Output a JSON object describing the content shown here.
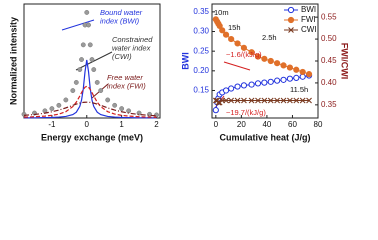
{
  "chart_data": [
    {
      "type": "line",
      "xlabel": "Energy exchange (meV)",
      "ylabel": "Normalized intensity",
      "x": [
        -1.8,
        -1.5,
        -1.2,
        -1,
        -0.8,
        -0.6,
        -0.4,
        -0.3,
        -0.2,
        -0.15,
        -0.1,
        -0.05,
        0,
        0.05,
        0.1,
        0.15,
        0.2,
        0.3,
        0.4,
        0.6,
        0.8,
        1,
        1.2,
        1.5,
        1.8,
        2
      ],
      "series": [
        {
          "color": "#9a9a9a",
          "style": "points",
          "values": [
            0.035,
            0.047,
            0.068,
            0.089,
            0.12,
            0.171,
            0.26,
            0.337,
            0.459,
            0.554,
            0.693,
            0.881,
            1.0,
            0.881,
            0.693,
            0.554,
            0.459,
            0.337,
            0.26,
            0.171,
            0.12,
            0.089,
            0.068,
            0.047,
            0.035,
            0.029
          ]
        },
        {
          "color": "#2233dd",
          "style": "solid",
          "values": [
            0.002,
            0.002,
            0.004,
            0.005,
            0.009,
            0.015,
            0.032,
            0.055,
            0.11,
            0.169,
            0.275,
            0.44,
            0.55,
            0.44,
            0.275,
            0.169,
            0.11,
            0.055,
            0.032,
            0.015,
            0.009,
            0.005,
            0.004,
            0.002,
            0.002,
            0.001
          ]
        },
        {
          "color": "#d42020",
          "style": "dashed",
          "values": [
            0.008,
            0.012,
            0.018,
            0.025,
            0.037,
            0.06,
            0.108,
            0.15,
            0.208,
            0.24,
            0.27,
            0.292,
            0.3,
            0.292,
            0.27,
            0.24,
            0.208,
            0.15,
            0.108,
            0.06,
            0.037,
            0.025,
            0.018,
            0.012,
            0.008,
            0.007
          ]
        },
        {
          "color": "#7a1a1a",
          "style": "dashdot",
          "values": [
            0.025,
            0.033,
            0.046,
            0.059,
            0.075,
            0.096,
            0.12,
            0.132,
            0.141,
            0.145,
            0.148,
            0.149,
            0.15,
            0.149,
            0.148,
            0.145,
            0.141,
            0.132,
            0.12,
            0.096,
            0.075,
            0.059,
            0.046,
            0.033,
            0.025,
            0.021
          ]
        }
      ],
      "xlim": [
        -1.8,
        2.1
      ],
      "xticks": [
        -1,
        0,
        1,
        2
      ],
      "ylim": [
        0,
        1.08
      ],
      "annotations": [
        {
          "lines": [
            "Bound water",
            "index (BWI)"
          ],
          "color": "#2233dd"
        },
        {
          "lines": [
            "Constrained",
            "water index",
            "(CWI)"
          ],
          "color": "#333333"
        },
        {
          "lines": [
            "Free water",
            "index (FWI)"
          ],
          "color": "#7a1a1a"
        }
      ]
    },
    {
      "type": "line",
      "xlabel": "Cumulative heat (J/g)",
      "ylabel": "BWI",
      "y2label": "FWI/CWI",
      "x": [
        0,
        1,
        2,
        3,
        5,
        8,
        12,
        17,
        22,
        28,
        33,
        38,
        43,
        48,
        53,
        58,
        63,
        68,
        73
      ],
      "series": [
        {
          "name": "BWI",
          "color": "#2233dd",
          "marker": "open-circle",
          "values": [
            0.1,
            0.12,
            0.13,
            0.14,
            0.145,
            0.15,
            0.155,
            0.16,
            0.163,
            0.165,
            0.168,
            0.17,
            0.172,
            0.175,
            0.177,
            0.18,
            0.182,
            0.185,
            0.188
          ]
        },
        {
          "name": "FWI",
          "color": "#e0702a",
          "marker": "filled-circle",
          "axis": "y2",
          "values": [
            0.545,
            0.54,
            0.535,
            0.53,
            0.52,
            0.51,
            0.5,
            0.49,
            0.48,
            0.47,
            0.46,
            0.455,
            0.45,
            0.445,
            0.44,
            0.435,
            0.43,
            0.425,
            0.42
          ]
        },
        {
          "name": "CWI",
          "color": "#7a3a20",
          "marker": "x",
          "axis": "y2",
          "values": [
            0.36,
            0.36,
            0.355,
            0.355,
            0.36,
            0.36,
            0.36,
            0.36,
            0.36,
            0.36,
            0.36,
            0.36,
            0.36,
            0.36,
            0.36,
            0.36,
            0.36,
            0.36,
            0.36
          ]
        }
      ],
      "xlim": [
        -3,
        80
      ],
      "xticks": [
        0,
        20,
        40,
        60,
        80
      ],
      "ylim": [
        0.08,
        0.37
      ],
      "yticks": [
        0.15,
        {
          "value": 0.2,
          "label": "0.20"
        },
        0.25,
        {
          "value": 0.3,
          "label": "0.30"
        },
        0.35
      ],
      "y2lim": [
        0.32,
        0.58
      ],
      "y2ticks": [
        0.35,
        {
          "value": 0.4,
          "label": "0.40"
        },
        0.45,
        {
          "value": 0.5,
          "label": "0.50"
        },
        0.55
      ],
      "legend": "upper right",
      "annotations": [
        {
          "lines": [
            "10m"
          ],
          "color": "#111111"
        },
        {
          "lines": [
            "15h"
          ],
          "color": "#111111"
        },
        {
          "lines": [
            "2.5h"
          ],
          "color": "#111111"
        },
        {
          "lines": [
            "11.5h"
          ],
          "color": "#111111"
        },
        {
          "lines": [
            "~1.6/(kJ/g)"
          ],
          "color": "#d42020"
        },
        {
          "lines": [
            "~19.7/(kJ/g)"
          ],
          "color": "#d42020"
        }
      ]
    }
  ]
}
